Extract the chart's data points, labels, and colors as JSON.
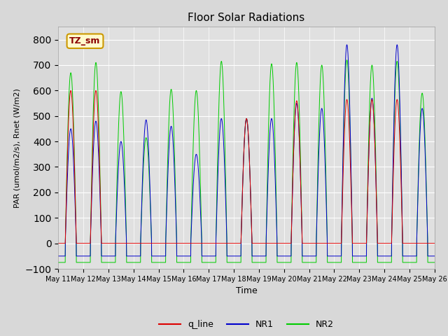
{
  "title": "Floor Solar Radiations",
  "xlabel": "Time",
  "ylabel": "PAR (umol/m2/s), Rnet (W/m2)",
  "ylim": [
    -100,
    850
  ],
  "yticks": [
    -100,
    0,
    100,
    200,
    300,
    400,
    500,
    600,
    700,
    800
  ],
  "legend_label": "TZ_sm",
  "line_labels": [
    "q_line",
    "NR1",
    "NR2"
  ],
  "line_colors": [
    "#dd0000",
    "#0000cc",
    "#00cc00"
  ],
  "bg_color": "#e0e0e0",
  "fig_bg_color": "#d8d8d8",
  "n_days": 15,
  "start_day": 11,
  "points_per_day": 144,
  "day_peaks_qline": [
    600,
    600,
    0,
    0,
    0,
    0,
    0,
    490,
    0,
    560,
    0,
    565,
    565,
    565,
    0
  ],
  "day_peaks_NR1": [
    450,
    480,
    400,
    485,
    460,
    350,
    490,
    490,
    490,
    550,
    530,
    780,
    570,
    780,
    530
  ],
  "day_peaks_NR2": [
    670,
    710,
    596,
    415,
    605,
    600,
    715,
    490,
    705,
    710,
    700,
    720,
    700,
    715,
    590
  ]
}
